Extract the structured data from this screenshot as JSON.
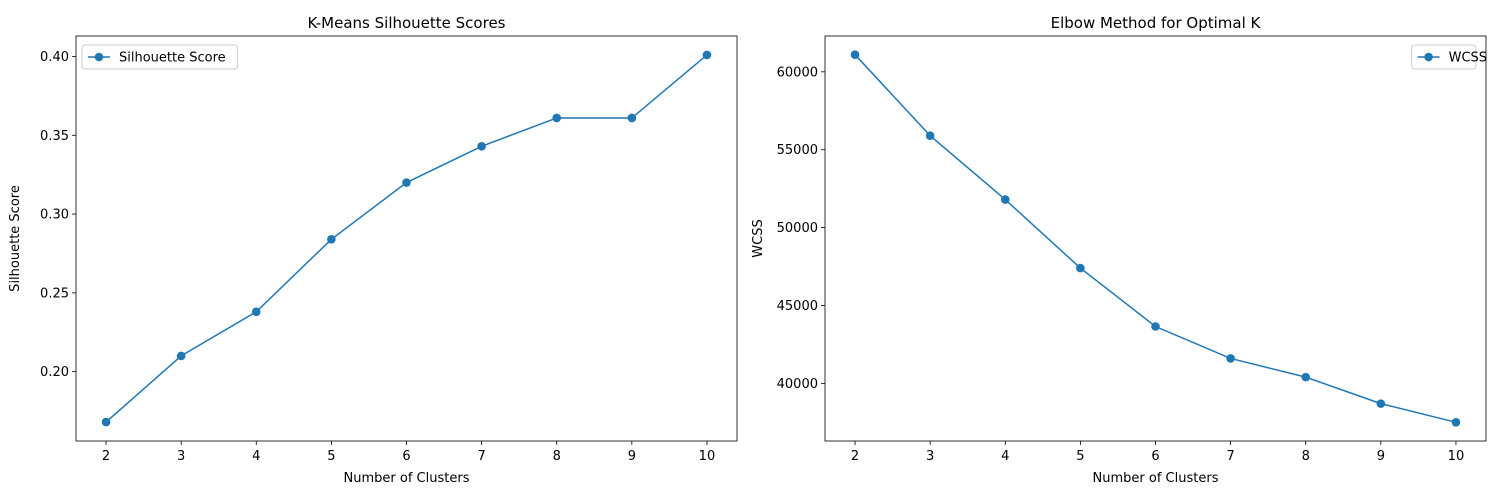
{
  "chart_data": [
    {
      "type": "line",
      "title": "K-Means Silhouette Scores",
      "xlabel": "Number of Clusters",
      "ylabel": "Silhouette Score",
      "x": [
        2,
        3,
        4,
        5,
        6,
        7,
        8,
        9,
        10
      ],
      "xticks": [
        "2",
        "3",
        "4",
        "5",
        "6",
        "7",
        "8",
        "9",
        "10"
      ],
      "xlim": [
        1.6,
        10.4
      ],
      "ylim": [
        0.156,
        0.413
      ],
      "yticks": [
        "0.20",
        "0.25",
        "0.30",
        "0.35",
        "0.40"
      ],
      "ytick_values": [
        0.2,
        0.25,
        0.3,
        0.35,
        0.4
      ],
      "legend_position": "upper-left",
      "grid": false,
      "series": [
        {
          "name": "Silhouette Score",
          "color": "#1f77b4",
          "marker": "circle",
          "values": [
            0.168,
            0.21,
            0.238,
            0.284,
            0.32,
            0.343,
            0.361,
            0.361,
            0.401
          ]
        }
      ]
    },
    {
      "type": "line",
      "title": "Elbow Method for Optimal K",
      "xlabel": "Number of Clusters",
      "ylabel": "WCSS",
      "x": [
        2,
        3,
        4,
        5,
        6,
        7,
        8,
        9,
        10
      ],
      "xticks": [
        "2",
        "3",
        "4",
        "5",
        "6",
        "7",
        "8",
        "9",
        "10"
      ],
      "xlim": [
        1.6,
        10.4
      ],
      "ylim": [
        36300,
        62300
      ],
      "yticks": [
        "40000",
        "45000",
        "50000",
        "55000",
        "60000"
      ],
      "ytick_values": [
        40000,
        45000,
        50000,
        55000,
        60000
      ],
      "legend_position": "upper-right",
      "grid": false,
      "series": [
        {
          "name": "WCSS",
          "color": "#1f77b4",
          "marker": "circle",
          "values": [
            61100,
            55900,
            51800,
            47400,
            43650,
            41600,
            40400,
            38700,
            37500
          ]
        }
      ]
    }
  ]
}
